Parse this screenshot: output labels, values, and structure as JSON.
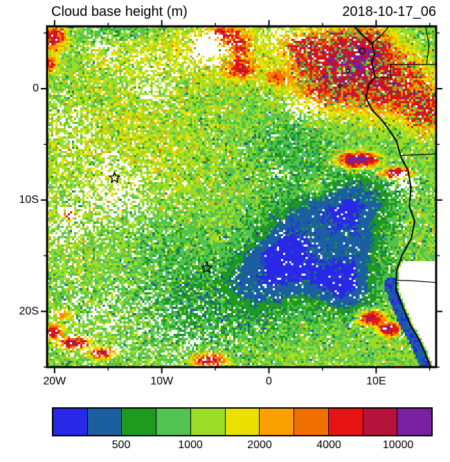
{
  "header": {
    "title": "Cloud base height (m)",
    "date": "2018-10-17_06"
  },
  "chart_data": {
    "type": "heatmap",
    "title": "Cloud base height (m)",
    "timestamp": "2018-10-17_06",
    "units": "m",
    "x_axis": {
      "range": [
        -20.7,
        15.6
      ],
      "ticks": [
        {
          "value": -20,
          "label": "20W"
        },
        {
          "value": -10,
          "label": "10W"
        },
        {
          "value": 0,
          "label": "0"
        },
        {
          "value": 10,
          "label": "10E"
        }
      ],
      "minor": [
        -15,
        -5,
        5,
        15
      ]
    },
    "y_axis": {
      "range": [
        -25.0,
        5.6
      ],
      "ticks": [
        {
          "value": 0,
          "label": "0"
        },
        {
          "value": -10,
          "label": "10S"
        },
        {
          "value": -20,
          "label": "20S"
        }
      ],
      "minor": [
        5,
        -5,
        -15,
        -25
      ]
    },
    "colorbar": {
      "palette": [
        "#2828E6",
        "#1A5FA0",
        "#1E9B1E",
        "#50C350",
        "#9BDC28",
        "#EBE100",
        "#FAA000",
        "#F07000",
        "#E61414",
        "#B4143C",
        "#7820A0"
      ],
      "thresholds": [
        300,
        500,
        700,
        1000,
        1400,
        2000,
        2800,
        4000,
        6300,
        10000
      ],
      "tick_labels": [
        "500",
        "1000",
        "2000",
        "4000",
        "10000"
      ],
      "tick_positions": [
        2,
        4,
        6,
        8,
        10
      ]
    },
    "markers": [
      {
        "shape": "star",
        "lon": -14.4,
        "lat": -8.0
      },
      {
        "shape": "star",
        "lon": -5.8,
        "lat": -16.1
      }
    ],
    "field": {
      "base": 1050,
      "base_gap": 0.045,
      "blobs": [
        {
          "lon": -13,
          "lat": -6,
          "sx": 9,
          "sy": 8,
          "amp": 250
        },
        {
          "lon": -6,
          "lat": 3.5,
          "sx": 9,
          "sy": 2.6,
          "amp": 450
        },
        {
          "lon": -13.5,
          "lat": 5.3,
          "sx": 4.5,
          "sy": 1.0,
          "amp": -380,
          "k": 1.2
        },
        {
          "lon": 5,
          "lat": -14,
          "sx": 5.6,
          "sy": 4.8,
          "amp": -700,
          "k": 1.5
        },
        {
          "lon": 9,
          "lat": -9.5,
          "sx": 3,
          "sy": 2.2,
          "amp": -350,
          "k": 1.3
        },
        {
          "lon": -0.5,
          "lat": -16,
          "sx": 3.2,
          "sy": 2.6,
          "amp": -300,
          "k": 1.3
        },
        {
          "lon": 7.5,
          "lat": -18.5,
          "sx": 2.5,
          "sy": 2.0,
          "amp": -350,
          "k": 1.2
        },
        {
          "lon": -5,
          "lat": -19.5,
          "sx": 6.5,
          "sy": 3.6,
          "amp": -380,
          "k": 1.4
        },
        {
          "lon": -10,
          "lat": -13.5,
          "sx": 4.5,
          "sy": 3.5,
          "amp": -260,
          "k": 1.2
        },
        {
          "lon": 2,
          "lat": -5,
          "sx": 4.5,
          "sy": 3,
          "amp": -260,
          "k": 1.2
        },
        {
          "lon": 4.2,
          "lat": -8.8,
          "sx": 0.9,
          "sy": 0.7,
          "amp": 500
        },
        {
          "lon": 6.5,
          "lat": 1.8,
          "sx": 3.4,
          "sy": 2.6,
          "amp": 5200,
          "k": 1.2
        },
        {
          "lon": 11.5,
          "lat": 0.5,
          "sx": 2.6,
          "sy": 2.2,
          "amp": 4200
        },
        {
          "lon": 9,
          "lat": 3.5,
          "sx": 2.0,
          "sy": 1.5,
          "amp": 4500
        },
        {
          "lon": 14.5,
          "lat": -1.8,
          "sx": 1.6,
          "sy": 1.6,
          "amp": 4200
        },
        {
          "lon": 3.2,
          "lat": 3.8,
          "sx": 1.4,
          "sy": 1.0,
          "amp": 3000
        },
        {
          "lon": -2.6,
          "lat": 1.8,
          "sx": 1.2,
          "sy": 0.8,
          "amp": 3800
        },
        {
          "lon": -2.7,
          "lat": 3.8,
          "sx": 0.9,
          "sy": 0.7,
          "amp": 3600
        },
        {
          "lon": -4,
          "lat": 4.9,
          "sx": 1.4,
          "sy": 0.7,
          "amp": 3000
        },
        {
          "lon": 0.6,
          "lat": 1.0,
          "sx": 0.8,
          "sy": 0.6,
          "amp": 2600
        },
        {
          "lon": -20.2,
          "lat": 4.6,
          "sx": 1.0,
          "sy": 0.9,
          "amp": 4500
        },
        {
          "lon": -20.4,
          "lat": 2.2,
          "sx": 0.5,
          "sy": 0.6,
          "amp": 3000
        },
        {
          "lon": -20.3,
          "lat": -21.8,
          "sx": 0.8,
          "sy": 0.5,
          "amp": 5200
        },
        {
          "lon": -18.2,
          "lat": -22.8,
          "sx": 1.1,
          "sy": 0.45,
          "amp": 5200
        },
        {
          "lon": -15.6,
          "lat": -23.8,
          "sx": 0.9,
          "sy": 0.4,
          "amp": 4200
        },
        {
          "lon": -19.2,
          "lat": -20.3,
          "sx": 0.6,
          "sy": 0.4,
          "amp": 2200
        },
        {
          "lon": -5.6,
          "lat": -24.4,
          "sx": 1.3,
          "sy": 0.5,
          "amp": 4200
        },
        {
          "lon": 8.3,
          "lat": -6.4,
          "sx": 1.3,
          "sy": 0.5,
          "amp": 10500
        },
        {
          "lon": 11.8,
          "lat": -7.6,
          "sx": 1.0,
          "sy": 0.4,
          "amp": 6500
        },
        {
          "lon": 9.6,
          "lat": -20.6,
          "sx": 0.9,
          "sy": 0.5,
          "amp": 6000
        },
        {
          "lon": 11.2,
          "lat": -21.6,
          "sx": 0.7,
          "sy": 0.5,
          "amp": 8500
        },
        {
          "lon": -18.6,
          "lat": -11.3,
          "sx": 0.4,
          "sy": 0.3,
          "amp": 9000
        }
      ],
      "gaps": [
        {
          "lon": -14.5,
          "lat": -9.5,
          "sx": 4.2,
          "sy": 3.4,
          "p": 0.55
        },
        {
          "lon": -5.7,
          "lat": 3.7,
          "sx": 1.6,
          "sy": 1.3,
          "p": 1.2
        },
        {
          "lon": -18.5,
          "lat": -3.5,
          "sx": 2.4,
          "sy": 2.4,
          "p": 0.4
        },
        {
          "lon": -19.5,
          "lat": -12.5,
          "sx": 1.8,
          "sy": 2.6,
          "p": 0.5
        },
        {
          "lon": -15,
          "lat": -20.5,
          "sx": 5.5,
          "sy": 3.6,
          "p": 0.5,
          "stripe": 1
        },
        {
          "lon": -7,
          "lat": -22.5,
          "sx": 3.5,
          "sy": 2.2,
          "p": 0.35,
          "stripe": 1
        },
        {
          "lon": 12.5,
          "lat": -8.6,
          "sx": 1.3,
          "sy": 0.9,
          "p": 0.75
        },
        {
          "lon": 1.5,
          "lat": 4.8,
          "sx": 2.2,
          "sy": 1.2,
          "p": 0.45
        },
        {
          "lon": -11,
          "lat": 2,
          "sx": 3.0,
          "sy": 1.6,
          "p": 0.35
        },
        {
          "lon": -15.5,
          "lat": 3.5,
          "sx": 1.8,
          "sy": 1.2,
          "p": 0.45
        },
        {
          "lon": 3.5,
          "lat": -1.5,
          "sx": 1.6,
          "sy": 1.1,
          "p": 0.6
        },
        {
          "lon": -11,
          "lat": -0.3,
          "sx": 1.6,
          "sy": 1.3,
          "p": 0.5
        },
        {
          "lon": 0.7,
          "lat": -7.6,
          "sx": 0.6,
          "sy": 0.5,
          "p": 0.7
        }
      ]
    },
    "coastline": [
      [
        8.0,
        5.6
      ],
      [
        8.5,
        5.0
      ],
      [
        9.6,
        4.05
      ],
      [
        9.85,
        3.1
      ],
      [
        9.6,
        2.4
      ],
      [
        9.9,
        1.1
      ],
      [
        9.3,
        0.3
      ],
      [
        9.05,
        -0.8
      ],
      [
        9.6,
        -1.9
      ],
      [
        10.6,
        -2.9
      ],
      [
        11.2,
        -3.7
      ],
      [
        11.9,
        -4.7
      ],
      [
        12.3,
        -6.1
      ],
      [
        13.0,
        -7.4
      ],
      [
        13.25,
        -8.9
      ],
      [
        13.1,
        -10.6
      ],
      [
        13.6,
        -11.9
      ],
      [
        13.3,
        -13.4
      ],
      [
        12.4,
        -15.0
      ],
      [
        11.9,
        -16.4
      ],
      [
        11.85,
        -18.0
      ],
      [
        12.5,
        -19.6
      ],
      [
        13.2,
        -21.2
      ],
      [
        14.1,
        -22.7
      ],
      [
        14.5,
        -23.6
      ],
      [
        15.1,
        -25.0
      ]
    ],
    "borders": [
      [
        [
          9.6,
          4.05
        ],
        [
          10.5,
          4.8
        ],
        [
          11.2,
          5.6
        ]
      ],
      [
        [
          9.9,
          1.0
        ],
        [
          11.35,
          1.0
        ],
        [
          11.35,
          2.17
        ],
        [
          15.6,
          2.17
        ]
      ],
      [
        [
          14.6,
          5.6
        ],
        [
          14.95,
          3.9
        ],
        [
          14.7,
          2.17
        ]
      ],
      [
        [
          12.3,
          -6.0
        ],
        [
          15.6,
          -5.85
        ]
      ],
      [
        [
          11.85,
          -17.2
        ],
        [
          13.4,
          -17.25
        ],
        [
          15.6,
          -17.4
        ]
      ]
    ],
    "islands": [
      {
        "lon": 8.7,
        "lat": 3.4,
        "r_deg": 0.28
      },
      {
        "lon": 7.35,
        "lat": 1.6,
        "r_deg": 0.14
      },
      {
        "lon": 6.6,
        "lat": 0.25,
        "r_deg": 0.16
      }
    ]
  }
}
